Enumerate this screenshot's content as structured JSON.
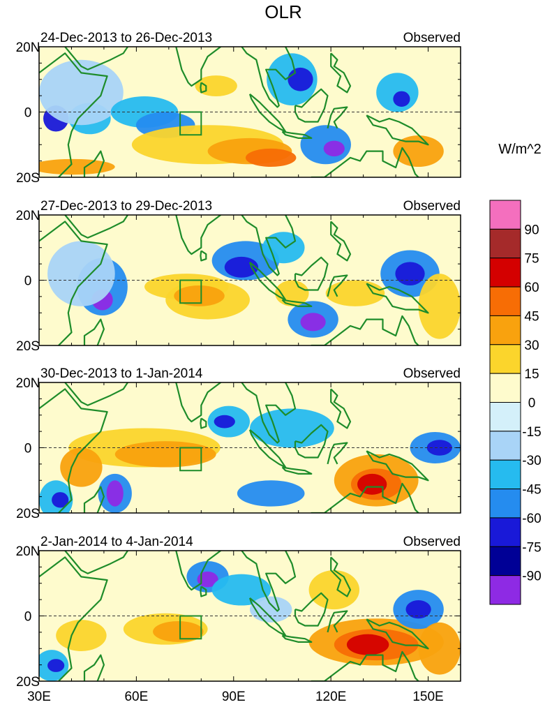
{
  "figure": {
    "title": "OLR",
    "units": "W/m^2"
  },
  "panels": [
    {
      "date_range": "24-Dec-2013 to 26-Dec-2013",
      "label": "Observed"
    },
    {
      "date_range": "27-Dec-2013 to 29-Dec-2013",
      "label": "Observed"
    },
    {
      "date_range": "30-Dec-2013 to 1-Jan-2014",
      "label": "Observed"
    },
    {
      "date_range": "2-Jan-2014 to 4-Jan-2014",
      "label": "Observed"
    }
  ],
  "lat_labels": [
    "20N",
    "0",
    "20S"
  ],
  "lon_labels": [
    "30E",
    "60E",
    "90E",
    "120E",
    "150E"
  ],
  "colorbar": {
    "labels": [
      "90",
      "75",
      "60",
      "45",
      "30",
      "15",
      "0",
      "-15",
      "-30",
      "-45",
      "-60",
      "-75",
      "-90"
    ],
    "colors": [
      "#f46fbe",
      "#a52a2a",
      "#d40000",
      "#f76d05",
      "#f9a20e",
      "#fbd52c",
      "#fefbcd",
      "#d4f0fa",
      "#a9d4f7",
      "#26bbef",
      "#258cef",
      "#1919d8",
      "#000096",
      "#8e2ae4"
    ]
  },
  "colors": {
    "coast": "#1e8c2a",
    "background_zero": "#fefbcd"
  },
  "features": [
    {
      "name": "anomaly-features",
      "blobs": [
        [
          [
            0.04,
            0.55,
            0.03,
            0.1,
            "#1919d8"
          ],
          [
            0.12,
            0.55,
            0.05,
            0.12,
            "#26bbef"
          ],
          [
            0.1,
            0.35,
            0.1,
            0.25,
            "#a9d4f7"
          ],
          [
            0.25,
            0.5,
            0.08,
            0.12,
            "#26bbef"
          ],
          [
            0.3,
            0.6,
            0.07,
            0.1,
            "#258cef"
          ],
          [
            0.4,
            0.75,
            0.18,
            0.15,
            "#fbd52c"
          ],
          [
            0.5,
            0.8,
            0.1,
            0.1,
            "#f9a20e"
          ],
          [
            0.55,
            0.85,
            0.06,
            0.07,
            "#f76d05"
          ],
          [
            0.6,
            0.25,
            0.06,
            0.2,
            "#26bbef"
          ],
          [
            0.62,
            0.25,
            0.03,
            0.09,
            "#1919d8"
          ],
          [
            0.68,
            0.75,
            0.06,
            0.15,
            "#258cef"
          ],
          [
            0.7,
            0.78,
            0.025,
            0.06,
            "#8e2ae4"
          ],
          [
            0.85,
            0.35,
            0.05,
            0.15,
            "#26bbef"
          ],
          [
            0.86,
            0.4,
            0.02,
            0.06,
            "#1919d8"
          ],
          [
            0.9,
            0.8,
            0.06,
            0.12,
            "#f9a20e"
          ],
          [
            0.42,
            0.3,
            0.05,
            0.08,
            "#fbd52c"
          ],
          [
            0.08,
            0.92,
            0.1,
            0.06,
            "#f9a20e"
          ]
        ],
        [
          [
            0.15,
            0.55,
            0.06,
            0.22,
            "#258cef"
          ],
          [
            0.15,
            0.65,
            0.025,
            0.08,
            "#8e2ae4"
          ],
          [
            0.1,
            0.45,
            0.08,
            0.25,
            "#a9d4f7"
          ],
          [
            0.35,
            0.55,
            0.1,
            0.1,
            "#fbd52c"
          ],
          [
            0.4,
            0.65,
            0.1,
            0.15,
            "#fbd52c"
          ],
          [
            0.38,
            0.62,
            0.06,
            0.08,
            "#f9a20e"
          ],
          [
            0.49,
            0.35,
            0.08,
            0.15,
            "#258cef"
          ],
          [
            0.48,
            0.4,
            0.04,
            0.08,
            "#1919d8"
          ],
          [
            0.58,
            0.25,
            0.05,
            0.12,
            "#26bbef"
          ],
          [
            0.65,
            0.8,
            0.06,
            0.14,
            "#258cef"
          ],
          [
            0.65,
            0.82,
            0.03,
            0.07,
            "#8e2ae4"
          ],
          [
            0.88,
            0.45,
            0.07,
            0.18,
            "#258cef"
          ],
          [
            0.88,
            0.45,
            0.035,
            0.09,
            "#1919d8"
          ],
          [
            0.75,
            0.6,
            0.07,
            0.1,
            "#fbd52c"
          ],
          [
            0.95,
            0.7,
            0.05,
            0.25,
            "#fbd52c"
          ],
          [
            0.6,
            0.6,
            0.04,
            0.1,
            "#fbd52c"
          ]
        ],
        [
          [
            0.04,
            0.9,
            0.04,
            0.15,
            "#26bbef"
          ],
          [
            0.05,
            0.9,
            0.02,
            0.06,
            "#1919d8"
          ],
          [
            0.18,
            0.85,
            0.04,
            0.15,
            "#258cef"
          ],
          [
            0.18,
            0.85,
            0.02,
            0.1,
            "#8e2ae4"
          ],
          [
            0.25,
            0.5,
            0.18,
            0.15,
            "#fbd52c"
          ],
          [
            0.3,
            0.55,
            0.12,
            0.1,
            "#f9a20e"
          ],
          [
            0.45,
            0.3,
            0.05,
            0.12,
            "#26bbef"
          ],
          [
            0.44,
            0.3,
            0.025,
            0.05,
            "#1919d8"
          ],
          [
            0.6,
            0.35,
            0.1,
            0.15,
            "#26bbef"
          ],
          [
            0.55,
            0.85,
            0.08,
            0.1,
            "#258cef"
          ],
          [
            0.8,
            0.75,
            0.1,
            0.2,
            "#f9a20e"
          ],
          [
            0.8,
            0.78,
            0.06,
            0.12,
            "#f76d05"
          ],
          [
            0.79,
            0.78,
            0.035,
            0.08,
            "#d40000"
          ],
          [
            0.94,
            0.5,
            0.06,
            0.12,
            "#258cef"
          ],
          [
            0.95,
            0.5,
            0.03,
            0.06,
            "#1919d8"
          ],
          [
            0.1,
            0.65,
            0.05,
            0.15,
            "#f9a20e"
          ]
        ],
        [
          [
            0.03,
            0.88,
            0.04,
            0.12,
            "#26bbef"
          ],
          [
            0.04,
            0.88,
            0.02,
            0.05,
            "#1919d8"
          ],
          [
            0.3,
            0.6,
            0.1,
            0.12,
            "#fbd52c"
          ],
          [
            0.33,
            0.62,
            0.06,
            0.08,
            "#f9a20e"
          ],
          [
            0.4,
            0.2,
            0.05,
            0.12,
            "#258cef"
          ],
          [
            0.4,
            0.22,
            0.025,
            0.06,
            "#8e2ae4"
          ],
          [
            0.48,
            0.3,
            0.07,
            0.12,
            "#26bbef"
          ],
          [
            0.55,
            0.45,
            0.05,
            0.1,
            "#a9d4f7"
          ],
          [
            0.8,
            0.7,
            0.16,
            0.18,
            "#f9a20e"
          ],
          [
            0.8,
            0.72,
            0.1,
            0.12,
            "#f76d05"
          ],
          [
            0.78,
            0.72,
            0.05,
            0.08,
            "#d40000"
          ],
          [
            0.9,
            0.45,
            0.06,
            0.15,
            "#258cef"
          ],
          [
            0.9,
            0.45,
            0.03,
            0.07,
            "#1919d8"
          ],
          [
            0.95,
            0.75,
            0.05,
            0.2,
            "#f9a20e"
          ],
          [
            0.1,
            0.65,
            0.06,
            0.12,
            "#fbd52c"
          ],
          [
            0.7,
            0.3,
            0.06,
            0.15,
            "#fbd52c"
          ]
        ]
      ]
    }
  ]
}
